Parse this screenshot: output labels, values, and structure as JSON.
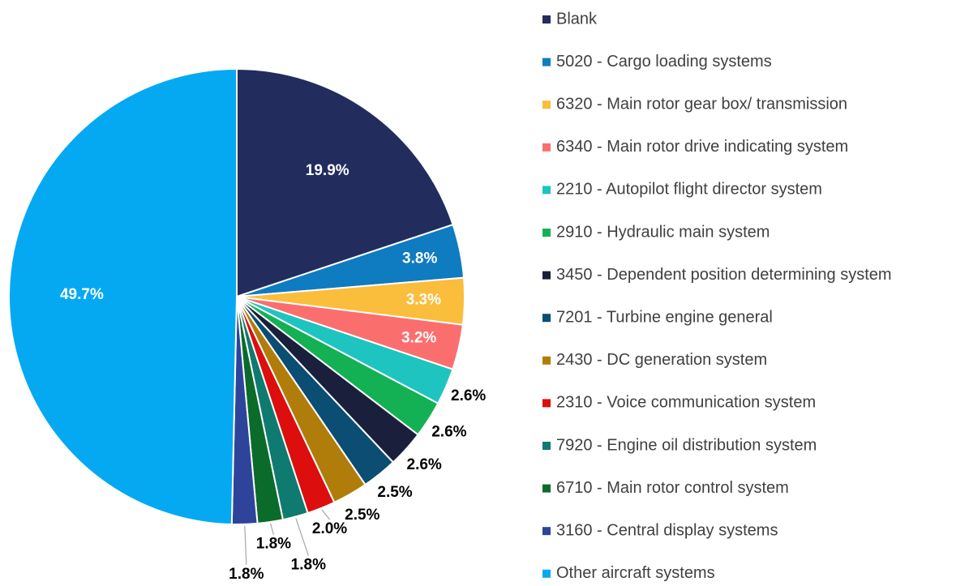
{
  "chart_data": {
    "type": "pie",
    "categories": [
      "Blank",
      "5020 - Cargo loading systems",
      "6320 - Main rotor gear box/ transmission",
      "6340 - Main rotor drive indicating system",
      "2210 - Autopilot flight director system",
      "2910 - Hydraulic main system",
      "3450 - Dependent position determining system",
      "7201 - Turbine engine general",
      "2430 - DC generation system",
      "2310 - Voice communication system",
      "7920 - Engine oil distribution system",
      "6710 - Main rotor control system",
      "3160 - Central display systems",
      "Other aircraft systems"
    ],
    "values": [
      19.9,
      3.8,
      3.3,
      3.2,
      2.6,
      2.6,
      2.6,
      2.5,
      2.5,
      2.0,
      1.8,
      1.8,
      1.8,
      49.7
    ],
    "value_labels": [
      "19.9%",
      "3.8%",
      "3.3%",
      "3.2%",
      "2.6%",
      "2.6%",
      "2.6%",
      "2.5%",
      "2.5%",
      "2.0%",
      "1.8%",
      "1.8%",
      "1.8%",
      "49.7%"
    ],
    "colors": [
      "#222d5e",
      "#0f7bc0",
      "#fbbd3c",
      "#fb6e6e",
      "#1ec4c0",
      "#13b153",
      "#1a1f3c",
      "#0b4d73",
      "#b07d0a",
      "#dc0e0e",
      "#0f7a70",
      "#0b6b2a",
      "#2e449a",
      "#04a9f2"
    ],
    "legend": "right"
  }
}
